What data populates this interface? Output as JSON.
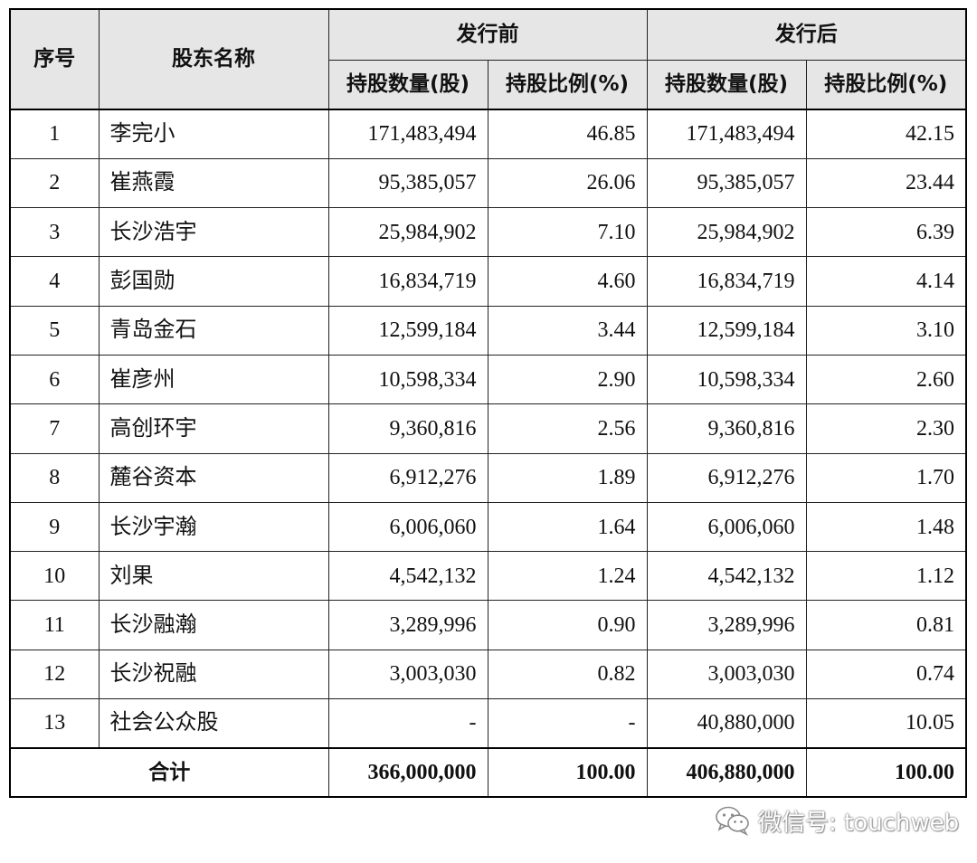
{
  "table": {
    "headers": {
      "index": "序号",
      "name": "股东名称",
      "before": "发行前",
      "after": "发行后",
      "shares": "持股数量(股)",
      "ratio": "持股比例(%)"
    },
    "rows": [
      {
        "index": "1",
        "name": "李完小",
        "before_shares": "171,483,494",
        "before_ratio": "46.85",
        "after_shares": "171,483,494",
        "after_ratio": "42.15"
      },
      {
        "index": "2",
        "name": "崔燕霞",
        "before_shares": "95,385,057",
        "before_ratio": "26.06",
        "after_shares": "95,385,057",
        "after_ratio": "23.44"
      },
      {
        "index": "3",
        "name": "长沙浩宇",
        "before_shares": "25,984,902",
        "before_ratio": "7.10",
        "after_shares": "25,984,902",
        "after_ratio": "6.39"
      },
      {
        "index": "4",
        "name": "彭国勋",
        "before_shares": "16,834,719",
        "before_ratio": "4.60",
        "after_shares": "16,834,719",
        "after_ratio": "4.14"
      },
      {
        "index": "5",
        "name": "青岛金石",
        "before_shares": "12,599,184",
        "before_ratio": "3.44",
        "after_shares": "12,599,184",
        "after_ratio": "3.10"
      },
      {
        "index": "6",
        "name": "崔彦州",
        "before_shares": "10,598,334",
        "before_ratio": "2.90",
        "after_shares": "10,598,334",
        "after_ratio": "2.60"
      },
      {
        "index": "7",
        "name": "高创环宇",
        "before_shares": "9,360,816",
        "before_ratio": "2.56",
        "after_shares": "9,360,816",
        "after_ratio": "2.30"
      },
      {
        "index": "8",
        "name": "麓谷资本",
        "before_shares": "6,912,276",
        "before_ratio": "1.89",
        "after_shares": "6,912,276",
        "after_ratio": "1.70"
      },
      {
        "index": "9",
        "name": "长沙宇瀚",
        "before_shares": "6,006,060",
        "before_ratio": "1.64",
        "after_shares": "6,006,060",
        "after_ratio": "1.48"
      },
      {
        "index": "10",
        "name": "刘果",
        "before_shares": "4,542,132",
        "before_ratio": "1.24",
        "after_shares": "4,542,132",
        "after_ratio": "1.12"
      },
      {
        "index": "11",
        "name": "长沙融瀚",
        "before_shares": "3,289,996",
        "before_ratio": "0.90",
        "after_shares": "3,289,996",
        "after_ratio": "0.81"
      },
      {
        "index": "12",
        "name": "长沙祝融",
        "before_shares": "3,003,030",
        "before_ratio": "0.82",
        "after_shares": "3,003,030",
        "after_ratio": "0.74"
      },
      {
        "index": "13",
        "name": "社会公众股",
        "before_shares": "-",
        "before_ratio": "-",
        "after_shares": "40,880,000",
        "after_ratio": "10.05"
      }
    ],
    "total": {
      "label": "合计",
      "before_shares": "366,000,000",
      "before_ratio": "100.00",
      "after_shares": "406,880,000",
      "after_ratio": "100.00"
    }
  },
  "watermark": {
    "text": "微信号: touchweb",
    "icon": "wechat-icon"
  }
}
